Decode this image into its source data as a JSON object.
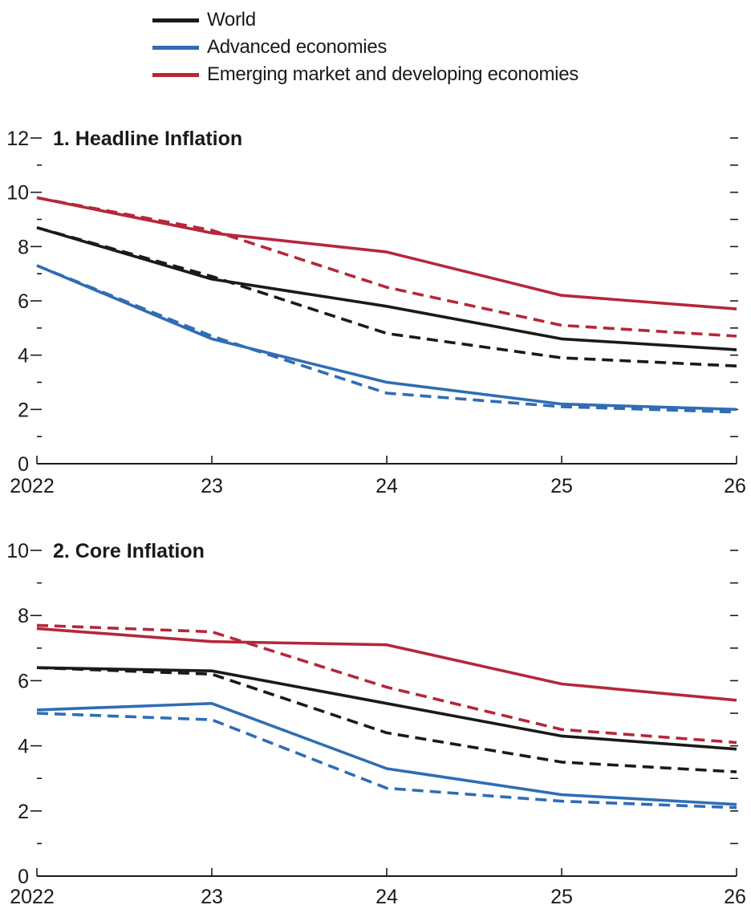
{
  "legend": [
    {
      "name": "World",
      "color": "#1a1a1a"
    },
    {
      "name": "Advanced economies",
      "color": "#2f6db5"
    },
    {
      "name": "Emerging market and developing economies",
      "color": "#b5273a"
    }
  ],
  "chart_data": [
    {
      "type": "line",
      "title": "1. Headline Inflation",
      "x": [
        2022,
        2023,
        2024,
        2025,
        2026
      ],
      "x_tick_labels": [
        "2022",
        "23",
        "24",
        "25",
        "26"
      ],
      "ylim": [
        0,
        12
      ],
      "y_ticks": [
        0,
        2,
        4,
        6,
        8,
        10,
        12
      ],
      "legend_placement": "top",
      "series": [
        {
          "name": "World",
          "style": "solid",
          "color": "#1a1a1a",
          "values": [
            8.7,
            6.8,
            5.8,
            4.6,
            4.2
          ]
        },
        {
          "name": "World",
          "style": "dashed",
          "color": "#1a1a1a",
          "values": [
            8.7,
            6.9,
            4.8,
            3.9,
            3.6
          ]
        },
        {
          "name": "Advanced economies",
          "style": "solid",
          "color": "#2f6db5",
          "values": [
            7.3,
            4.6,
            3.0,
            2.2,
            2.0
          ]
        },
        {
          "name": "Advanced economies",
          "style": "dashed",
          "color": "#2f6db5",
          "values": [
            7.3,
            4.7,
            2.6,
            2.1,
            1.9
          ]
        },
        {
          "name": "Emerging market and developing economies",
          "style": "solid",
          "color": "#b5273a",
          "values": [
            9.8,
            8.5,
            7.8,
            6.2,
            5.7
          ]
        },
        {
          "name": "Emerging market and developing economies",
          "style": "dashed",
          "color": "#b5273a",
          "values": [
            9.8,
            8.6,
            6.5,
            5.1,
            4.7
          ]
        }
      ]
    },
    {
      "type": "line",
      "title": "2. Core Inflation",
      "x": [
        2022,
        2023,
        2024,
        2025,
        2026
      ],
      "x_tick_labels": [
        "2022",
        "23",
        "24",
        "25",
        "26"
      ],
      "ylim": [
        0,
        10
      ],
      "y_ticks": [
        0,
        2,
        4,
        6,
        8,
        10
      ],
      "series": [
        {
          "name": "World",
          "style": "solid",
          "color": "#1a1a1a",
          "values": [
            6.4,
            6.3,
            5.3,
            4.3,
            3.9
          ]
        },
        {
          "name": "World",
          "style": "dashed",
          "color": "#1a1a1a",
          "values": [
            6.4,
            6.2,
            4.4,
            3.5,
            3.2
          ]
        },
        {
          "name": "Advanced economies",
          "style": "solid",
          "color": "#2f6db5",
          "values": [
            5.1,
            5.3,
            3.3,
            2.5,
            2.2
          ]
        },
        {
          "name": "Advanced economies",
          "style": "dashed",
          "color": "#2f6db5",
          "values": [
            5.0,
            4.8,
            2.7,
            2.3,
            2.1
          ]
        },
        {
          "name": "Emerging market and developing economies",
          "style": "solid",
          "color": "#b5273a",
          "values": [
            7.6,
            7.2,
            7.1,
            5.9,
            5.4
          ]
        },
        {
          "name": "Emerging market and developing economies",
          "style": "dashed",
          "color": "#b5273a",
          "values": [
            7.7,
            7.5,
            5.8,
            4.5,
            4.1
          ]
        }
      ]
    }
  ]
}
